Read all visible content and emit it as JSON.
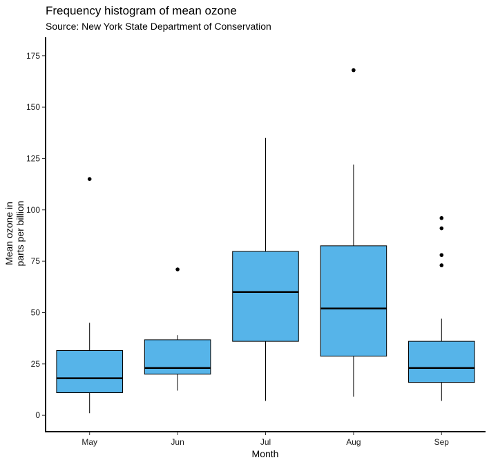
{
  "chart_data": {
    "type": "boxplot",
    "title": "Frequency histogram of mean ozone",
    "subtitle": "Source: New York State Department of Conservation",
    "xlabel": "Month",
    "ylabel_lines": [
      "Mean ozone in",
      "parts per billion"
    ],
    "ylim": [
      -8,
      184
    ],
    "yticks": [
      0,
      25,
      50,
      75,
      100,
      125,
      150,
      175
    ],
    "grid": false,
    "box_color": "#56B4E9",
    "categories": [
      "May",
      "Jun",
      "Jul",
      "Aug",
      "Sep"
    ],
    "boxes": [
      {
        "min": 1,
        "q1": 11,
        "median": 18,
        "q3": 31.5,
        "max": 45,
        "outliers": [
          115
        ]
      },
      {
        "min": 12,
        "q1": 20,
        "median": 23,
        "q3": 36.75,
        "max": 39,
        "outliers": [
          71
        ]
      },
      {
        "min": 7,
        "q1": 36,
        "median": 60,
        "q3": 79.75,
        "max": 135,
        "outliers": []
      },
      {
        "min": 9,
        "q1": 28.75,
        "median": 52,
        "q3": 82.5,
        "max": 122,
        "outliers": [
          168
        ]
      },
      {
        "min": 7,
        "q1": 16,
        "median": 23,
        "q3": 36,
        "max": 47,
        "outliers": [
          73,
          78,
          91,
          96
        ]
      }
    ]
  }
}
